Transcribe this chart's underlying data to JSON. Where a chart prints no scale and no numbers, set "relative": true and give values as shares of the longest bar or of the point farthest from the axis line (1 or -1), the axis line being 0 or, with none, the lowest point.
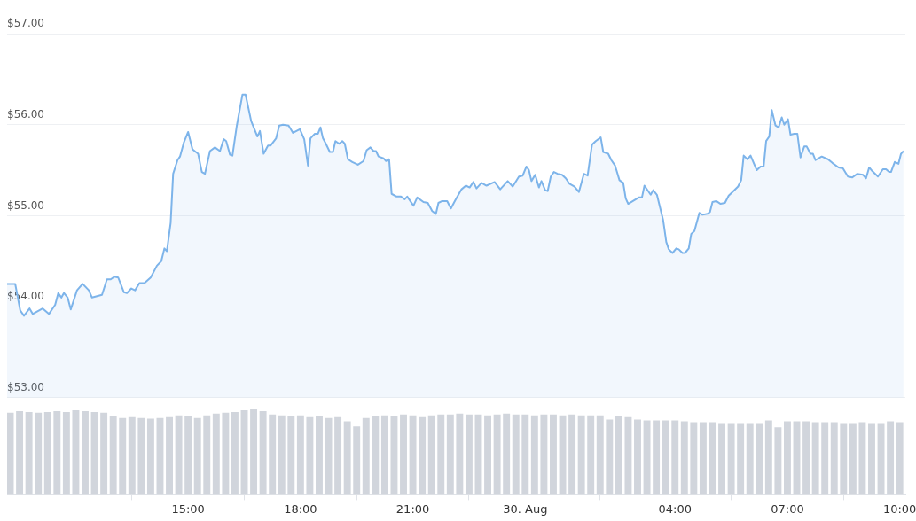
{
  "chart_data": [
    {
      "type": "area",
      "color": "#7db4ea",
      "xlim": [
        "--08-29T10:10",
        "--08-30T10:09"
      ],
      "ylim": [
        53,
        57
      ],
      "yticks": [
        {
          "value": 53,
          "label": "$53.00"
        },
        {
          "value": 54,
          "label": "$54.00"
        },
        {
          "value": 55,
          "label": "$55.00"
        },
        {
          "value": 56,
          "label": "$56.00"
        },
        {
          "value": 57,
          "label": "$57.00"
        }
      ],
      "grid": "y",
      "tick_labels": "y",
      "x": [
        "--08-29T10:10",
        "--08-29T10:23",
        "--08-29T10:31",
        "--08-29T10:37",
        "--08-29T10:46",
        "--08-29T10:51",
        "--08-29T11:07",
        "--08-29T11:17",
        "--08-29T11:27",
        "--08-29T11:32",
        "--08-29T11:37",
        "--08-29T11:41",
        "--08-29T11:47",
        "--08-29T11:52",
        "--08-29T12:02",
        "--08-29T12:11",
        "--08-29T12:21",
        "--08-29T12:26",
        "--08-29T12:42",
        "--08-29T12:50",
        "--08-29T12:56",
        "--08-29T13:02",
        "--08-29T13:08",
        "--08-29T13:17",
        "--08-29T13:22",
        "--08-29T13:29",
        "--08-29T13:35",
        "--08-29T13:42",
        "--08-29T13:50",
        "--08-29T14:00",
        "--08-29T14:10",
        "--08-29T14:17",
        "--08-29T14:22",
        "--08-29T14:26",
        "--08-29T14:32",
        "--08-29T14:36",
        "--08-29T14:43",
        "--08-29T14:47",
        "--08-29T14:53",
        "--08-29T15:00",
        "--08-29T15:07",
        "--08-29T15:16",
        "--08-29T15:22",
        "--08-29T15:27",
        "--08-29T15:35",
        "--08-29T15:43",
        "--08-29T15:51",
        "--08-29T15:57",
        "--08-29T16:01",
        "--08-29T16:07",
        "--08-29T16:11",
        "--08-29T16:18",
        "--08-29T16:27",
        "--08-29T16:32",
        "--08-29T16:41",
        "--08-29T16:51",
        "--08-29T16:55",
        "--08-29T17:01",
        "--08-29T17:08",
        "--08-29T17:12",
        "--08-29T17:21",
        "--08-29T17:26",
        "--08-29T17:32",
        "--08-29T17:41",
        "--08-29T17:48",
        "--08-29T17:59",
        "--08-29T18:06",
        "--08-29T18:12",
        "--08-29T18:16",
        "--08-29T18:23",
        "--08-29T18:28",
        "--08-29T18:32",
        "--08-29T18:36",
        "--08-29T18:40",
        "--08-29T18:47",
        "--08-29T18:52",
        "--08-29T18:56",
        "--08-29T19:02",
        "--08-29T19:07",
        "--08-29T19:11",
        "--08-29T19:16",
        "--08-29T19:23",
        "--08-29T19:32",
        "--08-29T19:41",
        "--08-29T19:46",
        "--08-29T19:52",
        "--08-29T19:57",
        "--08-29T20:01",
        "--08-29T20:05",
        "--08-29T20:13",
        "--08-29T20:17",
        "--08-29T20:22",
        "--08-29T20:26",
        "--08-29T20:34",
        "--08-29T20:41",
        "--08-29T20:47",
        "--08-29T20:51",
        "--08-29T21:01",
        "--08-29T21:07",
        "--08-29T21:17",
        "--08-29T21:24",
        "--08-29T21:31",
        "--08-29T21:37",
        "--08-29T21:41",
        "--08-29T21:47",
        "--08-29T21:55",
        "--08-29T22:01",
        "--08-29T22:08",
        "--08-29T22:18",
        "--08-29T22:25",
        "--08-29T22:31",
        "--08-29T22:37",
        "--08-29T22:42",
        "--08-29T22:50",
        "--08-29T22:58",
        "--08-29T23:11",
        "--08-29T23:20",
        "--08-29T23:32",
        "--08-29T23:40",
        "--08-29T23:50",
        "--08-29T23:56",
        "--08-30T00:02",
        "--08-30T00:06",
        "--08-30T00:10",
        "--08-30T00:16",
        "--08-30T00:22",
        "--08-30T00:26",
        "--08-30T00:32",
        "--08-30T00:36",
        "--08-30T00:41",
        "--08-30T00:46",
        "--08-30T00:52",
        "--08-30T00:59",
        "--08-30T01:05",
        "--08-30T01:11",
        "--08-30T01:19",
        "--08-30T01:26",
        "--08-30T01:34",
        "--08-30T01:40",
        "--08-30T01:47",
        "--08-30T01:53",
        "--08-30T02:01",
        "--08-30T02:05",
        "--08-30T02:13",
        "--08-30T02:18",
        "--08-30T02:24",
        "--08-30T02:31",
        "--08-30T02:37",
        "--08-30T02:41",
        "--08-30T02:45",
        "--08-30T03:02",
        "--08-30T03:07",
        "--08-30T03:11",
        "--08-30T03:21",
        "--08-30T03:25",
        "--08-30T03:31",
        "--08-30T03:41",
        "--08-30T03:46",
        "--08-30T03:50",
        "--08-30T03:56",
        "--08-30T04:02",
        "--08-30T04:06",
        "--08-30T04:12",
        "--08-30T04:16",
        "--08-30T04:22",
        "--08-30T04:26",
        "--08-30T04:31",
        "--08-30T04:39",
        "--08-30T04:44",
        "--08-30T04:52",
        "--08-30T04:56",
        "--08-30T05:00",
        "--08-30T05:06",
        "--08-30T05:13",
        "--08-30T05:20",
        "--08-30T05:26",
        "--08-30T05:32",
        "--08-30T05:41",
        "--08-30T05:46",
        "--08-30T05:50",
        "--08-30T05:56",
        "--08-30T06:01",
        "--08-30T06:11",
        "--08-30T06:17",
        "--08-30T06:22",
        "--08-30T06:26",
        "--08-30T06:31",
        "--08-30T06:35",
        "--08-30T06:41",
        "--08-30T06:46",
        "--08-30T06:51",
        "--08-30T06:55",
        "--08-30T07:01",
        "--08-30T07:05",
        "--08-30T07:11",
        "--08-30T07:16",
        "--08-30T07:21",
        "--08-30T07:27",
        "--08-30T07:31",
        "--08-30T07:37",
        "--08-30T07:41",
        "--08-30T07:45",
        "--08-30T07:55",
        "--08-30T08:05",
        "--08-30T08:12",
        "--08-30T08:22",
        "--08-30T08:29",
        "--08-30T08:37",
        "--08-30T08:44",
        "--08-30T08:52",
        "--08-30T09:01",
        "--08-30T09:06",
        "--08-30T09:11",
        "--08-30T09:16",
        "--08-30T09:25",
        "--08-30T09:33",
        "--08-30T09:38",
        "--08-30T09:43",
        "--08-30T09:46",
        "--08-30T09:52",
        "--08-30T09:58",
        "--08-30T10:02",
        "--08-30T10:06"
      ],
      "values": [
        54.25,
        54.25,
        53.96,
        53.9,
        53.98,
        53.92,
        53.98,
        53.92,
        54.02,
        54.15,
        54.1,
        54.15,
        54.1,
        53.97,
        54.18,
        54.25,
        54.18,
        54.1,
        54.13,
        54.3,
        54.3,
        54.33,
        54.32,
        54.16,
        54.15,
        54.2,
        54.18,
        54.26,
        54.26,
        54.32,
        54.45,
        54.5,
        54.64,
        54.61,
        54.92,
        55.46,
        55.61,
        55.65,
        55.8,
        55.92,
        55.73,
        55.68,
        55.48,
        55.46,
        55.71,
        55.75,
        55.71,
        55.84,
        55.82,
        55.67,
        55.66,
        55.99,
        56.33,
        56.33,
        56.04,
        55.87,
        55.93,
        55.68,
        55.77,
        55.77,
        55.85,
        55.99,
        56.0,
        55.99,
        55.91,
        55.95,
        55.84,
        55.55,
        55.85,
        55.9,
        55.9,
        55.97,
        55.85,
        55.8,
        55.7,
        55.7,
        55.82,
        55.79,
        55.82,
        55.79,
        55.62,
        55.59,
        55.56,
        55.6,
        55.72,
        55.75,
        55.71,
        55.71,
        55.65,
        55.63,
        55.6,
        55.62,
        55.24,
        55.21,
        55.21,
        55.18,
        55.21,
        55.11,
        55.2,
        55.15,
        55.14,
        55.05,
        55.02,
        55.14,
        55.16,
        55.16,
        55.08,
        55.17,
        55.29,
        55.33,
        55.31,
        55.37,
        55.3,
        55.36,
        55.33,
        55.37,
        55.29,
        55.38,
        55.32,
        55.43,
        55.44,
        55.54,
        55.5,
        55.38,
        55.45,
        55.31,
        55.38,
        55.28,
        55.27,
        55.43,
        55.48,
        55.46,
        55.45,
        55.41,
        55.35,
        55.32,
        55.26,
        55.46,
        55.44,
        55.78,
        55.82,
        55.86,
        55.7,
        55.68,
        55.61,
        55.55,
        55.39,
        55.36,
        55.19,
        55.13,
        55.2,
        55.2,
        55.33,
        55.23,
        55.28,
        55.23,
        54.95,
        54.71,
        54.63,
        54.59,
        54.64,
        54.63,
        54.59,
        54.59,
        54.64,
        54.8,
        54.83,
        55.03,
        55.01,
        55.02,
        55.04,
        55.15,
        55.16,
        55.13,
        55.14,
        55.22,
        55.26,
        55.32,
        55.39,
        55.66,
        55.62,
        55.66,
        55.5,
        55.54,
        55.54,
        55.82,
        55.87,
        56.16,
        55.99,
        55.97,
        56.08,
        56.0,
        56.06,
        55.89,
        55.9,
        55.9,
        55.64,
        55.76,
        55.76,
        55.68,
        55.68,
        55.61,
        55.65,
        55.62,
        55.58,
        55.53,
        55.52,
        55.43,
        55.42,
        55.46,
        55.45,
        55.41,
        55.53,
        55.49,
        55.43,
        55.51,
        55.51,
        55.48,
        55.48,
        55.59,
        55.57,
        55.68,
        55.71
      ]
    },
    {
      "type": "bar",
      "color": "#d1d5dc",
      "relative": true,
      "xlim": [
        "--08-29T10:10",
        "--08-30T10:09"
      ],
      "xticks": [
        {
          "value": "--08-29T15:00",
          "label": "15:00"
        },
        {
          "value": "--08-29T18:00",
          "label": "18:00"
        },
        {
          "value": "--08-29T21:00",
          "label": "21:00"
        },
        {
          "value": "--08-30T00:00",
          "label": "30. Aug"
        },
        {
          "value": "--08-30T04:00",
          "label": "04:00"
        },
        {
          "value": "--08-30T07:00",
          "label": "07:00"
        },
        {
          "value": "--08-30T10:00",
          "label": "10:00"
        }
      ],
      "tick_labels": "x",
      "x": [
        "--08-29T10:15",
        "--08-29T10:30",
        "--08-29T10:45",
        "--08-29T11:00",
        "--08-29T11:15",
        "--08-29T11:30",
        "--08-29T11:45",
        "--08-29T12:00",
        "--08-29T12:15",
        "--08-29T12:30",
        "--08-29T12:45",
        "--08-29T13:00",
        "--08-29T13:15",
        "--08-29T13:30",
        "--08-29T13:45",
        "--08-29T14:00",
        "--08-29T14:15",
        "--08-29T14:30",
        "--08-29T14:45",
        "--08-29T15:00",
        "--08-29T15:15",
        "--08-29T15:30",
        "--08-29T15:45",
        "--08-29T16:00",
        "--08-29T16:15",
        "--08-29T16:30",
        "--08-29T16:45",
        "--08-29T17:00",
        "--08-29T17:15",
        "--08-29T17:30",
        "--08-29T17:45",
        "--08-29T18:00",
        "--08-29T18:15",
        "--08-29T18:30",
        "--08-29T18:45",
        "--08-29T19:00",
        "--08-29T19:15",
        "--08-29T19:30",
        "--08-29T19:45",
        "--08-29T20:00",
        "--08-29T20:15",
        "--08-29T20:30",
        "--08-29T20:45",
        "--08-29T21:00",
        "--08-29T21:15",
        "--08-29T21:30",
        "--08-29T21:45",
        "--08-29T22:00",
        "--08-29T22:15",
        "--08-29T22:30",
        "--08-29T22:45",
        "--08-29T23:00",
        "--08-29T23:15",
        "--08-29T23:30",
        "--08-29T23:45",
        "--08-30T00:00",
        "--08-30T00:15",
        "--08-30T00:30",
        "--08-30T00:45",
        "--08-30T01:00",
        "--08-30T01:15",
        "--08-30T01:30",
        "--08-30T01:45",
        "--08-30T02:00",
        "--08-30T02:15",
        "--08-30T02:30",
        "--08-30T02:45",
        "--08-30T03:00",
        "--08-30T03:15",
        "--08-30T03:30",
        "--08-30T03:45",
        "--08-30T04:00",
        "--08-30T04:15",
        "--08-30T04:30",
        "--08-30T04:45",
        "--08-30T05:00",
        "--08-30T05:15",
        "--08-30T05:30",
        "--08-30T05:45",
        "--08-30T06:00",
        "--08-30T06:15",
        "--08-30T06:30",
        "--08-30T06:45",
        "--08-30T07:00",
        "--08-30T07:15",
        "--08-30T07:30",
        "--08-30T07:45",
        "--08-30T08:00",
        "--08-30T08:15",
        "--08-30T08:30",
        "--08-30T08:45",
        "--08-30T09:00",
        "--08-30T09:15",
        "--08-30T09:30",
        "--08-30T09:45",
        "--08-30T10:00"
      ],
      "values": [
        0.96,
        0.98,
        0.97,
        0.96,
        0.97,
        0.98,
        0.97,
        0.99,
        0.98,
        0.97,
        0.96,
        0.92,
        0.9,
        0.91,
        0.9,
        0.89,
        0.9,
        0.91,
        0.93,
        0.92,
        0.9,
        0.93,
        0.95,
        0.96,
        0.97,
        0.99,
        1,
        0.98,
        0.94,
        0.93,
        0.92,
        0.93,
        0.91,
        0.92,
        0.9,
        0.91,
        0.86,
        0.8,
        0.9,
        0.92,
        0.93,
        0.92,
        0.94,
        0.93,
        0.91,
        0.93,
        0.94,
        0.94,
        0.95,
        0.94,
        0.94,
        0.93,
        0.94,
        0.95,
        0.94,
        0.94,
        0.93,
        0.94,
        0.94,
        0.93,
        0.94,
        0.93,
        0.93,
        0.93,
        0.88,
        0.92,
        0.91,
        0.88,
        0.87,
        0.87,
        0.87,
        0.87,
        0.86,
        0.85,
        0.85,
        0.85,
        0.84,
        0.84,
        0.84,
        0.84,
        0.84,
        0.87,
        0.79,
        0.86,
        0.86,
        0.86,
        0.85,
        0.85,
        0.85,
        0.84,
        0.84,
        0.85,
        0.84,
        0.84,
        0.86,
        0.85
      ]
    }
  ]
}
